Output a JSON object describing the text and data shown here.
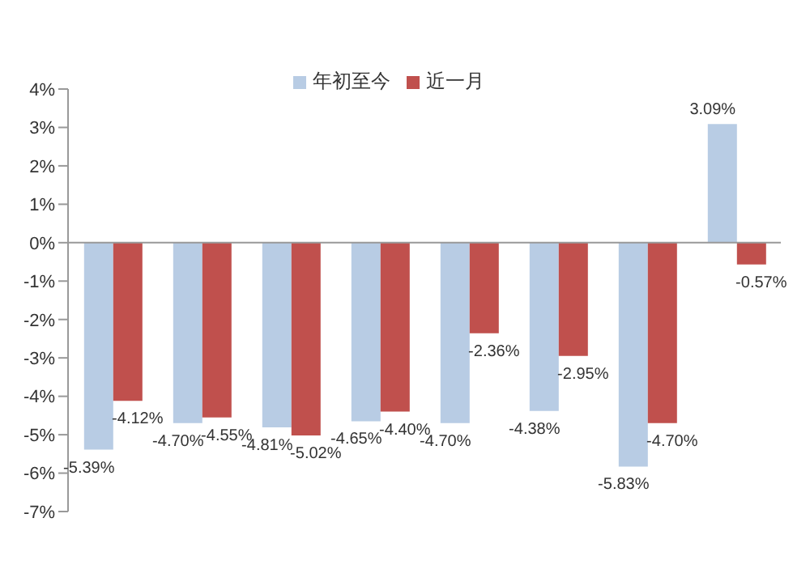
{
  "chart_data": {
    "type": "bar",
    "categories": [
      null,
      null,
      null,
      null,
      null,
      null,
      null,
      null
    ],
    "series": [
      {
        "name": "年初至今",
        "color": "#b8cce4",
        "values": [
          -5.39,
          -4.7,
          -4.81,
          -4.65,
          -4.7,
          -4.38,
          -5.83,
          3.09
        ],
        "value_labels": [
          "-5.39%",
          "-4.70%",
          "-4.81%",
          "-4.65%",
          "-4.70%",
          "-4.38%",
          "-5.83%",
          "3.09%"
        ]
      },
      {
        "name": "近一月",
        "color": "#c0504d",
        "values": [
          -4.12,
          -4.55,
          -5.02,
          -4.4,
          -2.36,
          -2.95,
          -4.7,
          -0.57
        ],
        "value_labels": [
          "-4.12%",
          "-4.55%",
          "-5.02%",
          "-4.40%",
          "-2.36%",
          "-2.95%",
          "-4.70%",
          "-0.57%"
        ]
      }
    ],
    "ylim": [
      -7,
      4
    ],
    "yticks": [
      {
        "value": -7,
        "label": "-7%"
      },
      {
        "value": -6,
        "label": "-6%"
      },
      {
        "value": -5,
        "label": "-5%"
      },
      {
        "value": -4,
        "label": "-4%"
      },
      {
        "value": -3,
        "label": "-3%"
      },
      {
        "value": -2,
        "label": "-2%"
      },
      {
        "value": -1,
        "label": "-1%"
      },
      {
        "value": 0,
        "label": "0%"
      },
      {
        "value": 1,
        "label": "1%"
      },
      {
        "value": 2,
        "label": "2%"
      },
      {
        "value": 3,
        "label": "3%"
      },
      {
        "value": 4,
        "label": "4%"
      }
    ],
    "legend": "top"
  }
}
